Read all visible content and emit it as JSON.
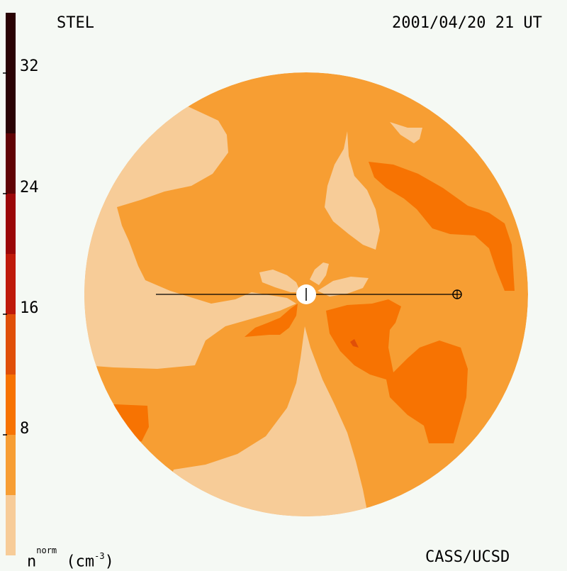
{
  "header": {
    "instrument": "STEL",
    "datetime": "2001/04/20 21 UT"
  },
  "footer": {
    "credit": "CASS/UCSD"
  },
  "colorbar": {
    "label_base": "n",
    "label_sup": "norm",
    "label_unit_open": " (cm",
    "label_unit_exp": "-3",
    "label_unit_close": ")",
    "ticks": [
      "8",
      "16",
      "24",
      "32"
    ],
    "levels": [
      "#f7cc98",
      "#f79e33",
      "#f77302",
      "#e04f08",
      "#bf1a0a",
      "#9b0708",
      "#600304",
      "#2a0304"
    ]
  },
  "colors": {
    "background": "#f5f9f4",
    "disk_base": "#f79e33",
    "low_density": "#f7cc98",
    "high_density": "#f77302",
    "highest_density": "#e04f08",
    "sun": "#ffffff",
    "line": "#000000"
  }
}
